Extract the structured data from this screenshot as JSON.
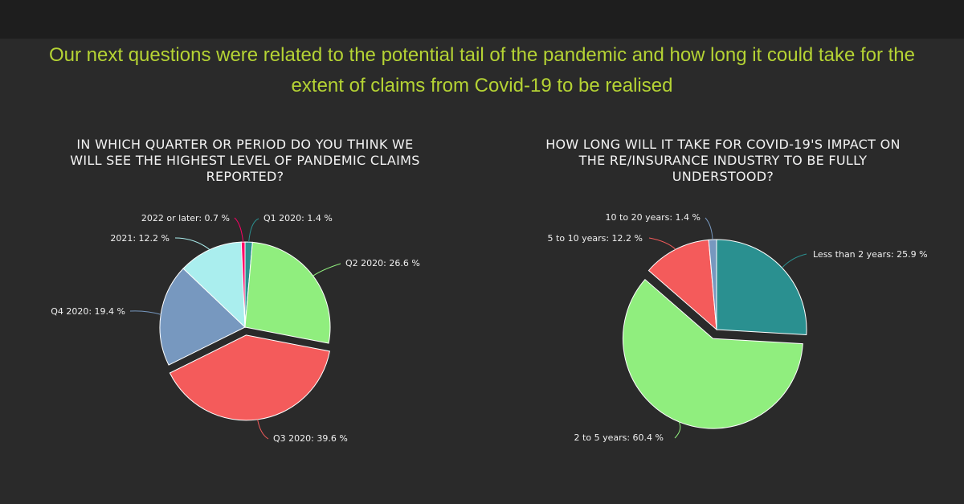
{
  "header": {
    "title_lines": [
      "Our next questions were related to the potential tail of the pandemic and how long it could take for the",
      "extent of claims from Covid-19 to be realised"
    ]
  },
  "chart_data": [
    {
      "type": "pie",
      "title_lines": [
        "IN WHICH QUARTER OR PERIOD DO YOU THINK WE",
        "WILL SEE THE HIGHEST LEVEL OF PANDEMIC CLAIMS",
        "REPORTED?"
      ],
      "slices": [
        {
          "label": "Q1 2020",
          "value": 1.4,
          "text": "Q1 2020: 1.4 %",
          "color": "#2a9090"
        },
        {
          "label": "Q2 2020",
          "value": 26.6,
          "text": "Q2 2020: 26.6 %",
          "color": "#90ee7e"
        },
        {
          "label": "Q3 2020",
          "value": 39.6,
          "text": "Q3 2020: 39.6 %",
          "color": "#f45b5b",
          "sliced": true
        },
        {
          "label": "Q4 2020",
          "value": 19.4,
          "text": "Q4 2020: 19.4 %",
          "color": "#7798bf"
        },
        {
          "label": "2021",
          "value": 12.2,
          "text": "2021: 12.2 %",
          "color": "#aaeeee"
        },
        {
          "label": "2022 or later",
          "value": 0.7,
          "text": "2022 or later: 0.7 %",
          "color": "#ff0066"
        }
      ]
    },
    {
      "type": "pie",
      "title_lines": [
        "HOW LONG WILL IT TAKE FOR COVID-19'S IMPACT ON",
        "THE RE/INSURANCE INDUSTRY TO BE FULLY",
        "UNDERSTOOD?"
      ],
      "slices": [
        {
          "label": "Less than 2 years",
          "value": 25.9,
          "text": "Less than 2 years: 25.9 %",
          "color": "#2a9090"
        },
        {
          "label": "2 to 5 years",
          "value": 60.4,
          "text": "2 to 5 years: 60.4 %",
          "color": "#90ee7e",
          "sliced": true
        },
        {
          "label": "5 to 10 years",
          "value": 12.2,
          "text": "5 to 10 years: 12.2 %",
          "color": "#f45b5b"
        },
        {
          "label": "10 to 20 years",
          "value": 1.4,
          "text": "10 to 20 years: 1.4 %",
          "color": "#7798bf"
        }
      ]
    }
  ]
}
